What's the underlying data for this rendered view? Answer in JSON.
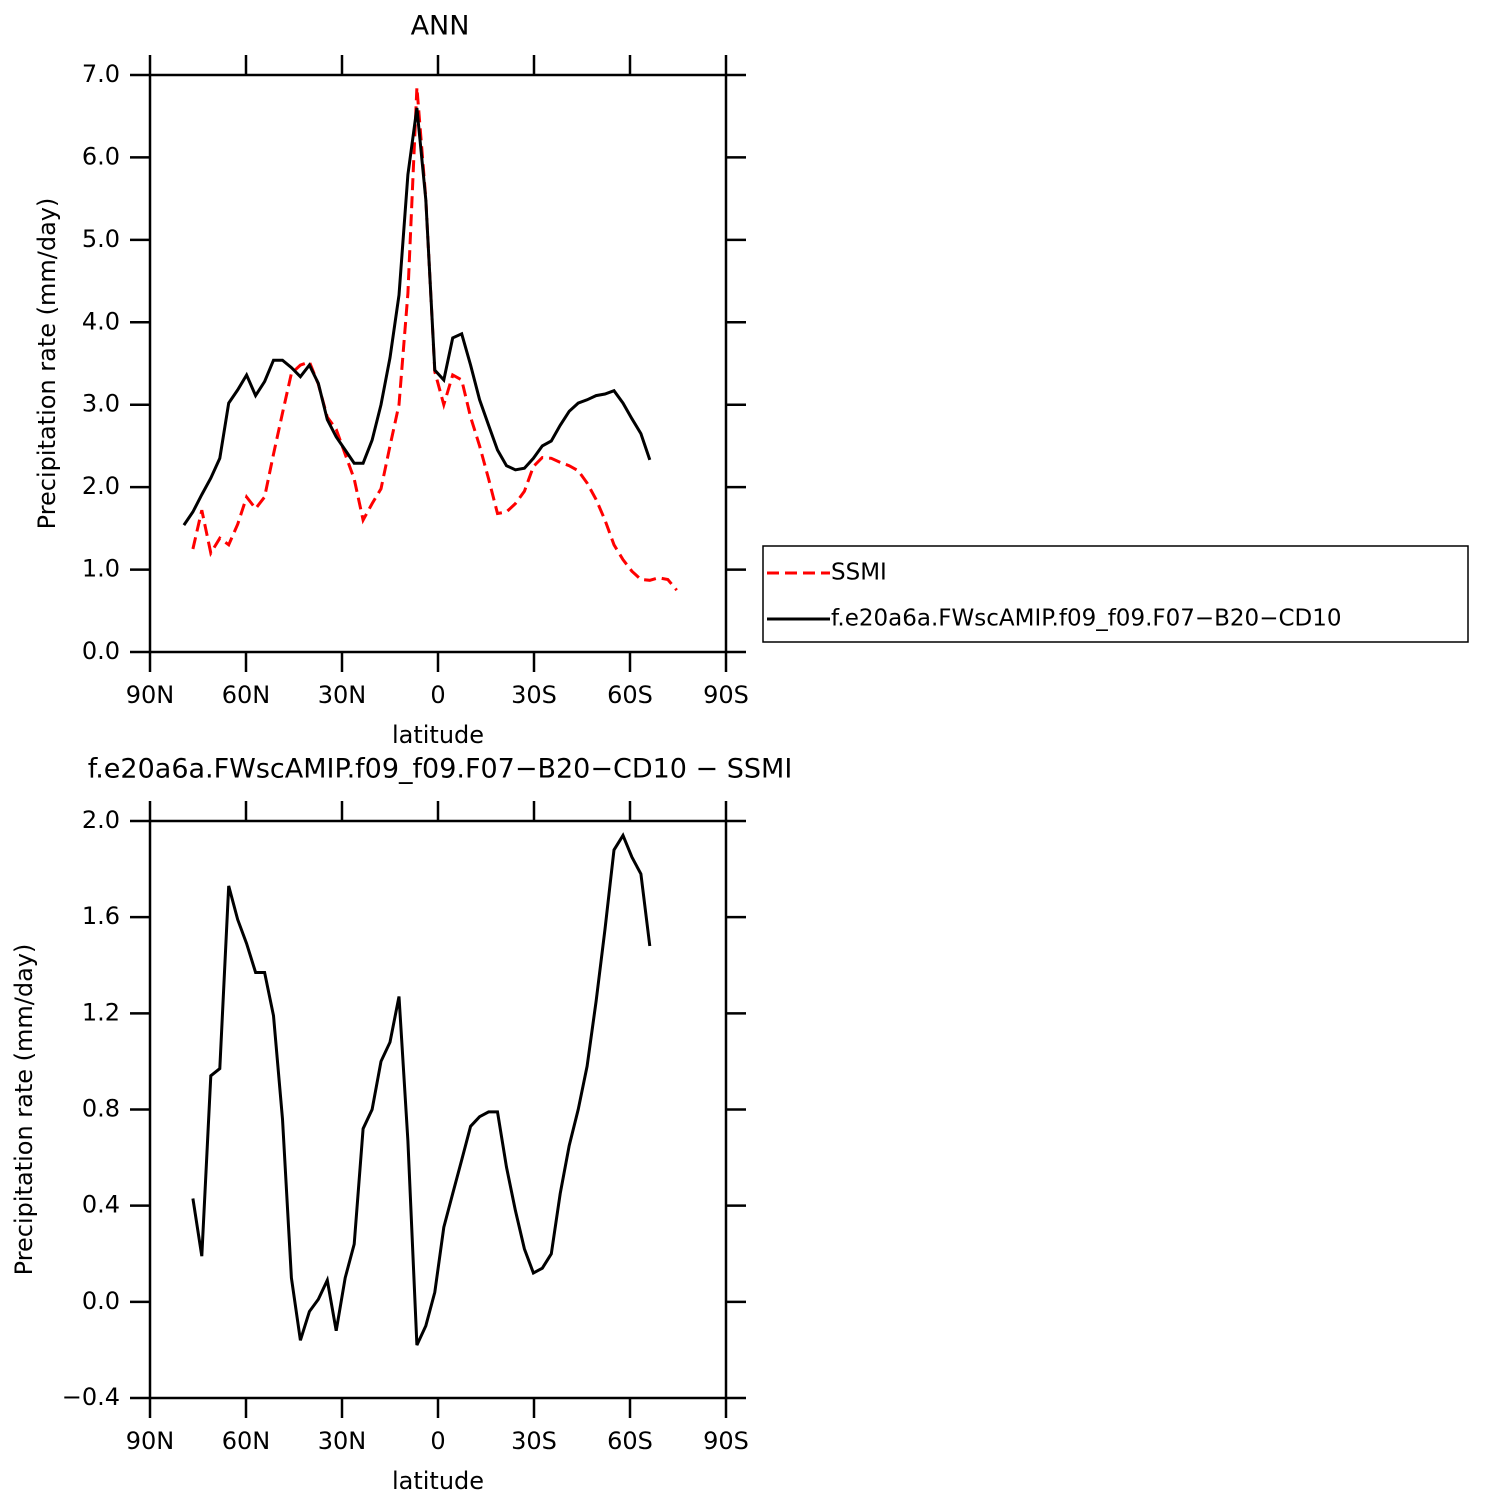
{
  "chart_data": [
    {
      "type": "line",
      "title": "ANN",
      "x_label": "latitude",
      "y_label": "Precipitation rate (mm/day)",
      "x": [
        79.4,
        76.6,
        73.8,
        71.0,
        68.2,
        65.4,
        62.6,
        59.8,
        57.0,
        54.2,
        51.4,
        48.6,
        45.8,
        43.0,
        40.2,
        37.4,
        34.6,
        31.8,
        29.0,
        26.2,
        23.4,
        20.6,
        17.8,
        15.0,
        12.2,
        9.4,
        6.6,
        3.8,
        1.0,
        -1.8,
        -4.6,
        -7.4,
        -10.2,
        -13.0,
        -15.8,
        -18.6,
        -21.4,
        -24.2,
        -27.0,
        -29.8,
        -32.6,
        -35.4,
        -38.2,
        -41.0,
        -43.8,
        -46.6,
        -49.4,
        -52.2,
        -55.0,
        -57.8,
        -60.6,
        -63.4,
        -66.2,
        -69.0,
        -71.8,
        -74.6
      ],
      "series": [
        {
          "name": "SSMI",
          "color": "#ff0000",
          "linestyle": "dashed",
          "values": [
            null,
            1.25,
            1.72,
            1.2,
            1.38,
            1.3,
            1.55,
            1.88,
            1.74,
            1.88,
            2.4,
            2.9,
            3.38,
            3.48,
            3.52,
            3.25,
            2.85,
            2.7,
            2.4,
            2.1,
            1.6,
            1.8,
            1.98,
            2.5,
            3.0,
            4.35,
            6.85,
            5.5,
            3.4,
            3.0,
            3.36,
            3.3,
            2.85,
            2.5,
            2.1,
            1.68,
            1.7,
            1.8,
            1.95,
            2.25,
            2.36,
            2.35,
            2.3,
            2.26,
            2.2,
            2.05,
            1.85,
            1.6,
            1.3,
            1.12,
            0.98,
            0.88,
            0.87,
            0.9,
            0.88,
            0.75
          ]
        },
        {
          "name": "f.e20a6a.FWscAMIP.f09_f09.F07−B20−CD10",
          "color": "#000000",
          "linestyle": "solid",
          "values": [
            1.54,
            1.7,
            1.91,
            2.11,
            2.35,
            3.02,
            3.18,
            3.36,
            3.11,
            3.28,
            3.54,
            3.54,
            3.45,
            3.34,
            3.48,
            3.26,
            2.82,
            2.61,
            2.45,
            2.29,
            2.29,
            2.57,
            3.0,
            3.57,
            4.33,
            5.79,
            6.6,
            5.49,
            3.42,
            3.3,
            3.81,
            3.86,
            3.48,
            3.06,
            2.75,
            2.45,
            2.26,
            2.21,
            2.23,
            2.35,
            2.5,
            2.56,
            2.75,
            2.92,
            3.02,
            3.06,
            3.11,
            3.13,
            3.17,
            3.02,
            2.83,
            2.65,
            2.33,
            null,
            null,
            null
          ]
        }
      ],
      "xlim": [
        90,
        -90
      ],
      "xticks": [
        {
          "value": 90,
          "label": "90N"
        },
        {
          "value": 60,
          "label": "60N"
        },
        {
          "value": 30,
          "label": "30N"
        },
        0,
        {
          "value": -30,
          "label": "30S"
        },
        {
          "value": -60,
          "label": "60S"
        },
        {
          "value": -90,
          "label": "90S"
        }
      ],
      "ylim": [
        0,
        7
      ],
      "yticks": [
        {
          "value": 0,
          "label": "0.0"
        },
        {
          "value": 1,
          "label": "1.0"
        },
        {
          "value": 2,
          "label": "2.0"
        },
        {
          "value": 3,
          "label": "3.0"
        },
        {
          "value": 4,
          "label": "4.0"
        },
        {
          "value": 5,
          "label": "5.0"
        },
        {
          "value": 6,
          "label": "6.0"
        },
        {
          "value": 7,
          "label": "7.0"
        }
      ],
      "legend": "right"
    },
    {
      "type": "line",
      "title": "f.e20a6a.FWscAMIP.f09_f09.F07−B20−CD10  −  SSMI",
      "x_label": "latitude",
      "y_label": "Precipitation rate (mm/day)",
      "x": [
        76.6,
        73.8,
        71.0,
        68.2,
        65.4,
        62.6,
        59.8,
        57.0,
        54.2,
        51.4,
        48.6,
        45.8,
        43.0,
        40.2,
        37.4,
        34.6,
        31.8,
        29.0,
        26.2,
        23.4,
        20.6,
        17.8,
        15.0,
        12.2,
        9.4,
        6.6,
        3.8,
        1.0,
        -1.8,
        -4.6,
        -7.4,
        -10.2,
        -13.0,
        -15.8,
        -18.6,
        -21.4,
        -24.2,
        -27.0,
        -29.8,
        -32.6,
        -35.4,
        -38.2,
        -41.0,
        -43.8,
        -46.6,
        -49.4,
        -52.2,
        -55.0,
        -57.8,
        -60.6,
        -63.4,
        -66.2
      ],
      "series": [
        {
          "color": "#000000",
          "linestyle": "solid",
          "values": [
            0.43,
            0.19,
            0.94,
            0.97,
            1.73,
            1.59,
            1.49,
            1.37,
            1.37,
            1.19,
            0.76,
            0.1,
            -0.16,
            -0.04,
            0.01,
            0.09,
            -0.12,
            0.1,
            0.24,
            0.72,
            0.8,
            1.0,
            1.08,
            1.27,
            0.67,
            -0.18,
            -0.1,
            0.04,
            0.31,
            0.45,
            0.59,
            0.73,
            0.77,
            0.79,
            0.79,
            0.56,
            0.38,
            0.22,
            0.12,
            0.14,
            0.2,
            0.45,
            0.65,
            0.8,
            0.98,
            1.25,
            1.55,
            1.88,
            1.94,
            1.85,
            1.78,
            1.48
          ]
        }
      ],
      "xlim": [
        90,
        -90
      ],
      "xticks": [
        {
          "value": 90,
          "label": "90N"
        },
        {
          "value": 60,
          "label": "60N"
        },
        {
          "value": 30,
          "label": "30N"
        },
        0,
        {
          "value": -30,
          "label": "30S"
        },
        {
          "value": -60,
          "label": "60S"
        },
        {
          "value": -90,
          "label": "90S"
        }
      ],
      "ylim": [
        -0.4,
        2.0
      ],
      "yticks": [
        {
          "value": -0.4,
          "label": "−0.4"
        },
        {
          "value": 0,
          "label": "0.0"
        },
        0.4,
        0.8,
        1.2,
        1.6,
        {
          "value": 2.0,
          "label": "2.0"
        }
      ]
    }
  ]
}
